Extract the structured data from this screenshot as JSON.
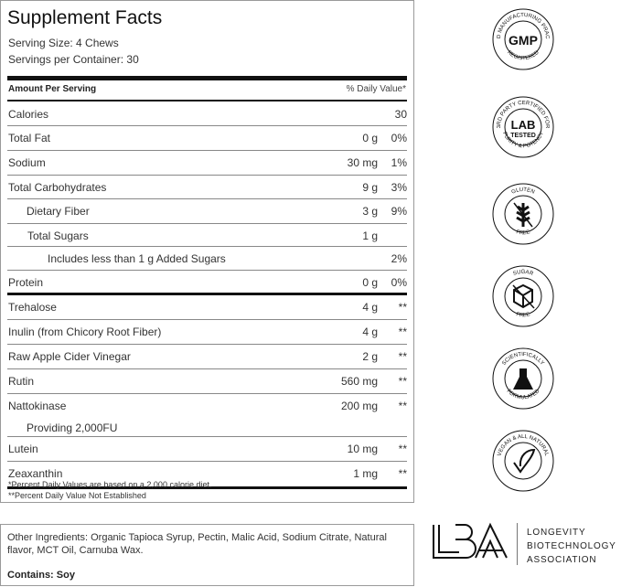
{
  "facts": {
    "title": "Supplement Facts",
    "serving_size": "Serving Size: 4 Chews",
    "servings_per_container": "Servings per Container: 30",
    "amount_header": "Amount Per Serving",
    "dv_header": "% Daily Value*",
    "rows": [
      {
        "name": "Calories",
        "amount": "",
        "dv": "30"
      },
      {
        "name": "Total Fat",
        "amount": "0 g",
        "dv": "0%"
      },
      {
        "name": "Sodium",
        "amount": "30 mg",
        "dv": "1%"
      },
      {
        "name": "Total Carbohydrates",
        "amount": "9 g",
        "dv": "3%"
      },
      {
        "name": "Dietary Fiber",
        "amount": "3 g",
        "dv": "9%"
      },
      {
        "name": "Total Sugars",
        "amount": "1 g",
        "dv": ""
      },
      {
        "name": "Includes less than 1 g Added Sugars",
        "amount": "",
        "dv": "2%"
      },
      {
        "name": "Protein",
        "amount": "0 g",
        "dv": "0%"
      },
      {
        "name": "Trehalose",
        "amount": "4 g",
        "dv": "**"
      },
      {
        "name": "Inulin (from Chicory Root Fiber)",
        "amount": "4 g",
        "dv": "**"
      },
      {
        "name": "Raw Apple Cider Vinegar",
        "amount": "2 g",
        "dv": "**"
      },
      {
        "name": "Rutin",
        "amount": "560 mg",
        "dv": "**"
      },
      {
        "name": "Nattokinase",
        "amount": "200 mg",
        "dv": "**",
        "sub": "Providing 2,000FU"
      },
      {
        "name": "Lutein",
        "amount": "10 mg",
        "dv": "**"
      },
      {
        "name": "Zeaxanthin",
        "amount": "1 mg",
        "dv": "**"
      }
    ],
    "footnote1": "*Percent Daily Values are based on a 2,000 calorie diet.",
    "footnote2": "**Percent Daily Value Not Established"
  },
  "other": {
    "ingredients": "Other Ingredients: Organic Tapioca Syrup, Pectin, Malic Acid, Sodium Citrate, Natural flavor, MCT Oil, Carnuba Wax.",
    "contains": "Contains: Soy"
  },
  "badges": [
    {
      "icon": "gmp-badge-icon",
      "top": "GOOD MANUFACTURING PRACTICE",
      "center": "GMP",
      "bottom": "REGISTERED"
    },
    {
      "icon": "lab-tested-badge-icon",
      "top": "3RD PARTY CERTIFIED FOR",
      "center": "LAB",
      "center2": "TESTED",
      "bottom": "PURITY & POTENCY"
    },
    {
      "icon": "gluten-free-badge-icon",
      "top": "GLUTEN",
      "bottom": "FREE"
    },
    {
      "icon": "sugar-free-badge-icon",
      "top": "SUGAR",
      "bottom": "FREE"
    },
    {
      "icon": "scientifically-formulated-badge-icon",
      "top": "SCIENTIFICALLY",
      "bottom": "FORMULATED"
    },
    {
      "icon": "vegan-badge-icon",
      "top": "VEGAN & ALL NATURAL",
      "bottom": ""
    }
  ],
  "lba": {
    "logo": "LBA",
    "line1": "LONGEVITY",
    "line2": "BIOTECHNOLOGY",
    "line3": "ASSOCIATION"
  }
}
